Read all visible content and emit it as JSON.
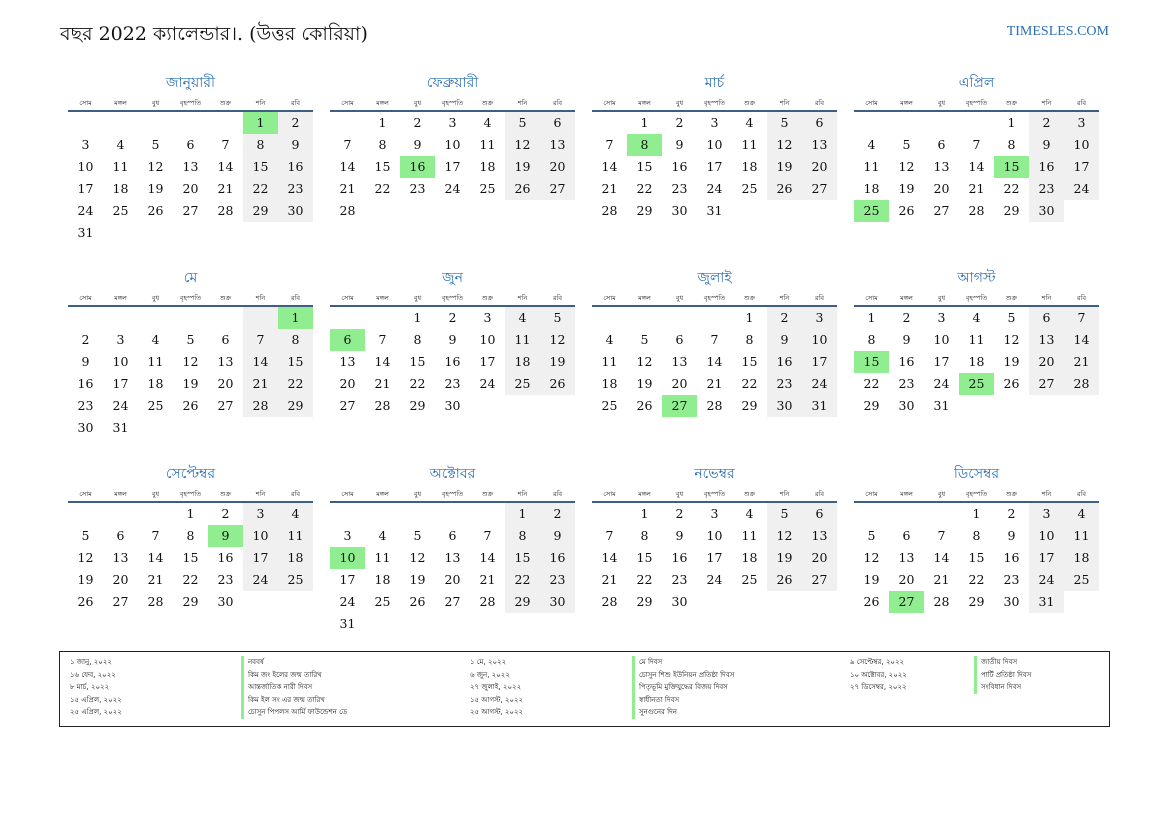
{
  "header": {
    "title": "বছর 2022 ক্যালেন্ডার।. (উত্তর কোরিয়া)",
    "site": "TIMESLES.COM"
  },
  "weekdays": [
    "সোম",
    "মঙ্গল",
    "বুধ",
    "বৃহস্পতি",
    "শুক্র",
    "শনি",
    "রবি"
  ],
  "colors": {
    "accent": "#2a6fb4",
    "highlight": "#90ee90",
    "weekend": "#f0f0f0",
    "rule": "#3d5f86"
  },
  "months": [
    {
      "name": "জানুয়ারী",
      "offset": 5,
      "days": 31,
      "highlights": [
        1
      ]
    },
    {
      "name": "ফেব্রুয়ারী",
      "offset": 1,
      "days": 28,
      "highlights": [
        16
      ]
    },
    {
      "name": "মার্চ",
      "offset": 1,
      "days": 31,
      "highlights": [
        8
      ]
    },
    {
      "name": "এপ্রিল",
      "offset": 4,
      "days": 30,
      "highlights": [
        15,
        25
      ]
    },
    {
      "name": "মে",
      "offset": 6,
      "days": 31,
      "highlights": [
        1
      ]
    },
    {
      "name": "জুন",
      "offset": 2,
      "days": 30,
      "highlights": [
        6
      ]
    },
    {
      "name": "জুলাই",
      "offset": 4,
      "days": 31,
      "highlights": [
        27
      ]
    },
    {
      "name": "আগস্ট",
      "offset": 0,
      "days": 31,
      "highlights": [
        15,
        25
      ]
    },
    {
      "name": "সেপ্টেম্বর",
      "offset": 3,
      "days": 30,
      "highlights": [
        9
      ]
    },
    {
      "name": "অক্টোবর",
      "offset": 5,
      "days": 31,
      "highlights": [
        10
      ]
    },
    {
      "name": "নভেম্বর",
      "offset": 1,
      "days": 30,
      "highlights": []
    },
    {
      "name": "ডিসেম্বর",
      "offset": 3,
      "days": 31,
      "highlights": [
        27
      ]
    }
  ],
  "holidays": [
    {
      "date": "১ জানু, ২০২২",
      "name": "নববর্ষ"
    },
    {
      "date": "১৬ ফেব, ২০২২",
      "name": "কিম জং ইলের জন্ম তারিখ"
    },
    {
      "date": "৮ মার্চ, ২০২২",
      "name": "আন্তর্জাতিক নারী দিবস"
    },
    {
      "date": "১৫ এপ্রিল, ২০২২",
      "name": "কিম ইল সং এর জন্ম তারিখ"
    },
    {
      "date": "২৫ এপ্রিল, ২০২২",
      "name": "চোসুন পিপলস আর্মি ফাউন্ডেশন ডে"
    },
    {
      "date": "১ মে, ২০২২",
      "name": "মে দিবস"
    },
    {
      "date": "৬ জুন, ২০২২",
      "name": "চোসুন শিশু ইউনিয়ন প্রতিষ্ঠা দিবস"
    },
    {
      "date": "২৭ জুলাই, ২০২২",
      "name": "পিতৃভূমি মুক্তিযুদ্ধের বিজয় দিবস"
    },
    {
      "date": "১৫ আগস্ট, ২০২২",
      "name": "স্বাধীনতা দিবস"
    },
    {
      "date": "২৫ আগস্ট, ২০২২",
      "name": "সুনগুনের দিন"
    },
    {
      "date": "৯ সেপ্টেম্বর, ২০২২",
      "name": "জাতীয় দিবস"
    },
    {
      "date": "১০ অক্টোবর, ২০২২",
      "name": "পার্টি প্রতিষ্ঠা দিবস"
    },
    {
      "date": "২৭ ডিসেম্বর, ২০২২",
      "name": "সংবিধান দিবস"
    }
  ]
}
